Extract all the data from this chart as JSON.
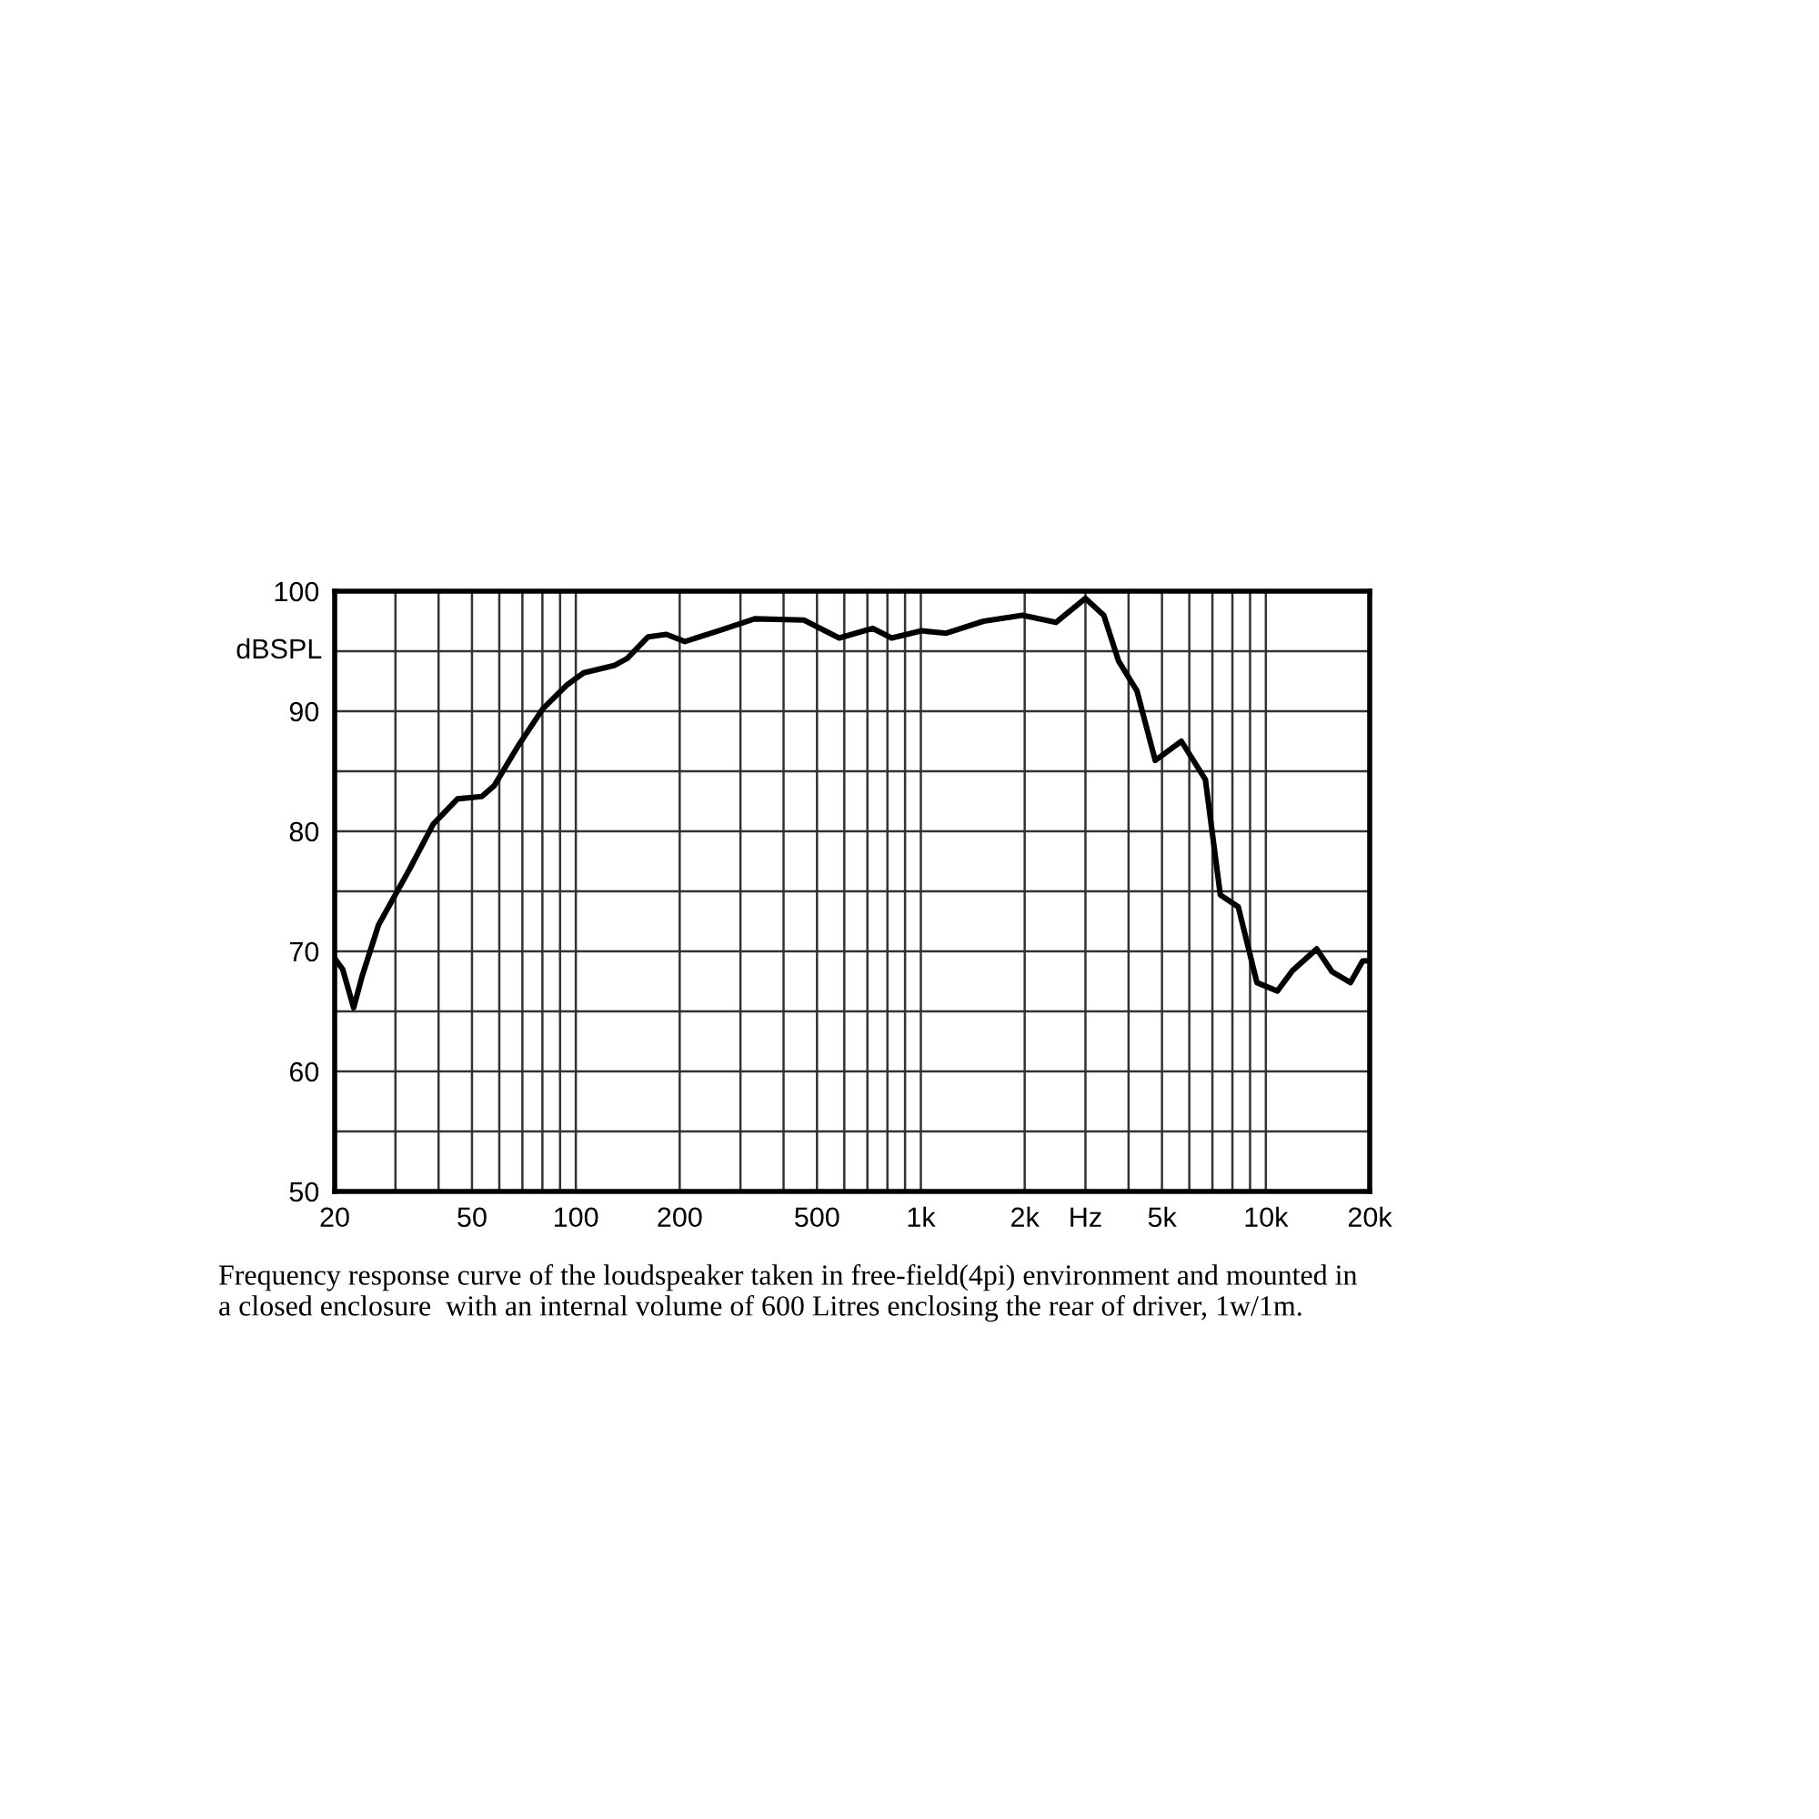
{
  "chart_data": {
    "type": "line",
    "ylabel": "dBSPL",
    "x": [
      20,
      21.1,
      22.7,
      24.0,
      26.8,
      32.9,
      38.6,
      45.4,
      53.4,
      58,
      68,
      80.2,
      94.3,
      105.4,
      129,
      141,
      162,
      183,
      207,
      259,
      330,
      458,
      580,
      686,
      726,
      823,
      1006,
      1185,
      1520,
      1971,
      2463,
      3000,
      3390,
      3740,
      4230,
      4780,
      5690,
      6680,
      7380,
      8320,
      9420,
      10800,
      11950,
      14040,
      15560,
      17600,
      19080,
      20000
    ],
    "series": [
      {
        "color": "#000000",
        "values": [
          69.4,
          68.5,
          65.3,
          67.9,
          72.2,
          76.8,
          80.6,
          82.7,
          82.9,
          83.8,
          87.1,
          90.2,
          92.2,
          93.2,
          93.8,
          94.4,
          96.2,
          96.4,
          95.8,
          96.7,
          97.7,
          97.6,
          96.1,
          96.7,
          96.9,
          96.1,
          96.7,
          96.5,
          97.5,
          98.0,
          97.4,
          99.4,
          98.0,
          94.2,
          91.7,
          85.9,
          87.5,
          84.3,
          74.7,
          73.7,
          67.4,
          66.7,
          68.4,
          70.2,
          68.3,
          67.4,
          69.2,
          69.2
        ]
      }
    ],
    "log": "x",
    "xlim": [
      20,
      20000
    ],
    "ylim": [
      50,
      100
    ],
    "xticks": [
      20,
      {
        "value": 30,
        "label": null
      },
      {
        "value": 40,
        "label": null
      },
      50,
      {
        "value": 60,
        "label": null
      },
      {
        "value": 70,
        "label": null
      },
      {
        "value": 80,
        "label": null
      },
      {
        "value": 90,
        "label": null
      },
      100,
      200,
      {
        "value": 300,
        "label": null
      },
      {
        "value": 400,
        "label": null
      },
      500,
      {
        "value": 600,
        "label": null
      },
      {
        "value": 700,
        "label": null
      },
      {
        "value": 800,
        "label": null
      },
      {
        "value": 900,
        "label": null
      },
      {
        "value": 1000,
        "label": "1k"
      },
      {
        "value": 2000,
        "label": "2k"
      },
      {
        "value": 3000,
        "label": "Hz"
      },
      {
        "value": 4000,
        "label": null
      },
      {
        "value": 5000,
        "label": "5k"
      },
      {
        "value": 6000,
        "label": null
      },
      {
        "value": 7000,
        "label": null
      },
      {
        "value": 8000,
        "label": null
      },
      {
        "value": 9000,
        "label": null
      },
      {
        "value": 10000,
        "label": "10k"
      },
      {
        "value": 20000,
        "label": "20k"
      }
    ],
    "yticks": [
      50,
      {
        "value": 55,
        "label": null
      },
      60,
      {
        "value": 65,
        "label": null
      },
      70,
      {
        "value": 75,
        "label": null
      },
      80,
      {
        "value": 85,
        "label": null
      },
      90,
      {
        "value": 95,
        "label": null
      },
      100
    ],
    "grid": true,
    "legend": false,
    "marker": "none",
    "line_style": "solid",
    "annotations": [
      "Frequency response curve of the loudspeaker taken in free-field(4pi) environment and mounted in\na closed enclosure  with an internal volume of 600 Litres enclosing the rear of driver, 1w/1m."
    ]
  }
}
